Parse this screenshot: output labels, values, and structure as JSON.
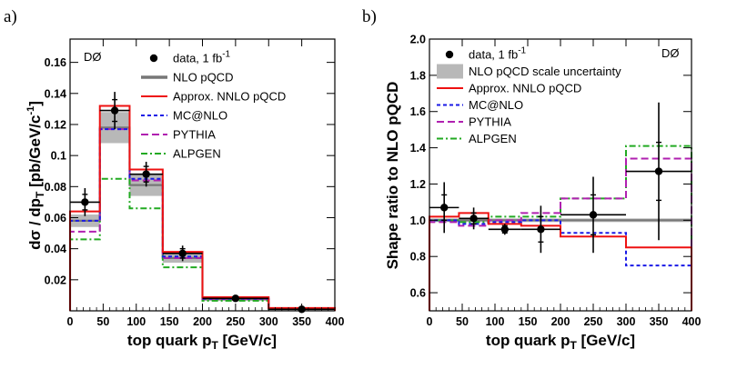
{
  "chart_data": [
    {
      "panel_label": "a)",
      "type": "histogram",
      "experiment_label": "DØ",
      "xlabel": "top quark p",
      "xlabel_sub": "T",
      "xlabel_unit": "[GeV/c]",
      "ylabel": "dσ / dp",
      "ylabel_sub": "T",
      "ylabel_unit": "[pb/GeV",
      "ylabel_unit2": "c",
      "ylabel_unit_sup": "-1",
      "xlim": [
        0,
        400
      ],
      "ylim": [
        0,
        0.175
      ],
      "xticks": [
        0,
        50,
        100,
        150,
        200,
        250,
        300,
        350,
        400
      ],
      "yticks": [
        0.02,
        0.04,
        0.06,
        0.08,
        0.1,
        0.12,
        0.14,
        0.16
      ],
      "ytick_labels": [
        "0.02",
        "0.04",
        "0.06",
        "0.08",
        "0.1",
        "0.12",
        "0.14",
        "0.16"
      ],
      "bin_edges": [
        0,
        45,
        90,
        140,
        200,
        300,
        400
      ],
      "legend": [
        {
          "key": "data",
          "label": "data, 1 fb",
          "sup": "-1",
          "style": "marker"
        },
        {
          "key": "nlo",
          "label": "NLO pQCD",
          "style": "band"
        },
        {
          "key": "nnlo",
          "label": "Approx. NNLO pQCD",
          "color": "#ee1111",
          "style": "solid"
        },
        {
          "key": "mcnlo",
          "label": "MC@NLO",
          "color": "#1a1ae6",
          "style": "dashed"
        },
        {
          "key": "pythia",
          "label": "PYTHIA",
          "color": "#b020b0",
          "style": "longdash"
        },
        {
          "key": "alpgen",
          "label": "ALPGEN",
          "color": "#22aa22",
          "style": "dashdot"
        }
      ],
      "band": {
        "low": [
          0.054,
          0.108,
          0.074,
          0.031,
          0.0065,
          0.0012
        ],
        "high": [
          0.062,
          0.128,
          0.088,
          0.037,
          0.0085,
          0.002
        ]
      },
      "series": [
        {
          "key": "nnlo",
          "values": [
            0.064,
            0.132,
            0.091,
            0.038,
            0.0088,
            0.0018
          ]
        },
        {
          "key": "mcnlo",
          "values": [
            0.058,
            0.117,
            0.085,
            0.035,
            0.0078,
            0.0015
          ]
        },
        {
          "key": "pythia",
          "values": [
            0.051,
            0.117,
            0.084,
            0.034,
            0.0077,
            0.0015
          ]
        },
        {
          "key": "alpgen",
          "values": [
            0.046,
            0.085,
            0.066,
            0.028,
            0.0065,
            0.0012
          ]
        }
      ],
      "points": [
        {
          "x": 22.5,
          "y": 0.07,
          "xerr": 22.5,
          "yerr": 0.009,
          "ystat": 0.005
        },
        {
          "x": 67.5,
          "y": 0.129,
          "xerr": 22.5,
          "yerr": 0.012,
          "ystat": 0.007
        },
        {
          "x": 115,
          "y": 0.088,
          "xerr": 25,
          "yerr": 0.008,
          "ystat": 0.005
        },
        {
          "x": 170,
          "y": 0.037,
          "xerr": 30,
          "yerr": 0.005,
          "ystat": 0.003
        },
        {
          "x": 250,
          "y": 0.008,
          "xerr": 50,
          "yerr": 0.0015,
          "ystat": 0.0008
        },
        {
          "x": 350,
          "y": 0.001,
          "xerr": 50,
          "yerr": 0.0006,
          "ystat": 0.0004
        }
      ]
    },
    {
      "panel_label": "b)",
      "type": "histogram",
      "experiment_label": "DØ",
      "xlabel": "top quark p",
      "xlabel_sub": "T",
      "xlabel_unit": "[GeV/c]",
      "ylabel": "Shape ratio to NLO pQCD",
      "xlim": [
        0,
        400
      ],
      "ylim": [
        0.5,
        2.0
      ],
      "xticks": [
        0,
        50,
        100,
        150,
        200,
        250,
        300,
        350,
        400
      ],
      "yticks": [
        0.6,
        0.8,
        1.0,
        1.2,
        1.4,
        1.6,
        1.8,
        2.0
      ],
      "ytick_labels": [
        "0.6",
        "0.8",
        "1.0",
        "1.2",
        "1.4",
        "1.6",
        "1.8",
        "2.0"
      ],
      "bin_edges": [
        0,
        45,
        90,
        140,
        200,
        300,
        400
      ],
      "legend": [
        {
          "key": "data",
          "label": "data, 1 fb",
          "sup": "-1",
          "style": "marker"
        },
        {
          "key": "nlo",
          "label": "NLO pQCD scale uncertainty",
          "style": "band"
        },
        {
          "key": "nnlo",
          "label": "Approx. NNLO pQCD",
          "color": "#ee1111",
          "style": "solid"
        },
        {
          "key": "mcnlo",
          "label": "MC@NLO",
          "color": "#1a1ae6",
          "style": "dashed"
        },
        {
          "key": "pythia",
          "label": "PYTHIA",
          "color": "#b020b0",
          "style": "longdash"
        },
        {
          "key": "alpgen",
          "label": "ALPGEN",
          "color": "#22aa22",
          "style": "dashdot"
        }
      ],
      "band": {
        "low": [
          0.99,
          0.99,
          0.99,
          0.99,
          0.99,
          0.99
        ],
        "high": [
          1.01,
          1.01,
          1.01,
          1.01,
          1.01,
          1.01
        ]
      },
      "series": [
        {
          "key": "nnlo",
          "values": [
            1.02,
            1.04,
            0.98,
            0.97,
            0.91,
            0.85
          ]
        },
        {
          "key": "mcnlo",
          "values": [
            1.0,
            0.98,
            0.99,
            1.0,
            0.93,
            0.75
          ]
        },
        {
          "key": "pythia",
          "values": [
            0.99,
            0.97,
            1.0,
            1.04,
            1.12,
            1.34
          ]
        },
        {
          "key": "alpgen",
          "values": [
            1.0,
            0.99,
            1.02,
            1.02,
            1.12,
            1.41
          ]
        }
      ],
      "points": [
        {
          "x": 22.5,
          "y": 1.07,
          "xerr": 22.5,
          "yerr": 0.14,
          "ystat": 0.07
        },
        {
          "x": 67.5,
          "y": 1.01,
          "xerr": 22.5,
          "yerr": 0.06,
          "ystat": 0.03
        },
        {
          "x": 115,
          "y": 0.95,
          "xerr": 25,
          "yerr": 0.03,
          "ystat": 0.02
        },
        {
          "x": 170,
          "y": 0.95,
          "xerr": 30,
          "yerr": 0.13,
          "ystat": 0.07
        },
        {
          "x": 250,
          "y": 1.03,
          "xerr": 50,
          "yerr": 0.21,
          "ystat": 0.11
        },
        {
          "x": 350,
          "y": 1.27,
          "xerr": 50,
          "yerr": 0.38,
          "ystat": 0.16
        }
      ]
    }
  ]
}
